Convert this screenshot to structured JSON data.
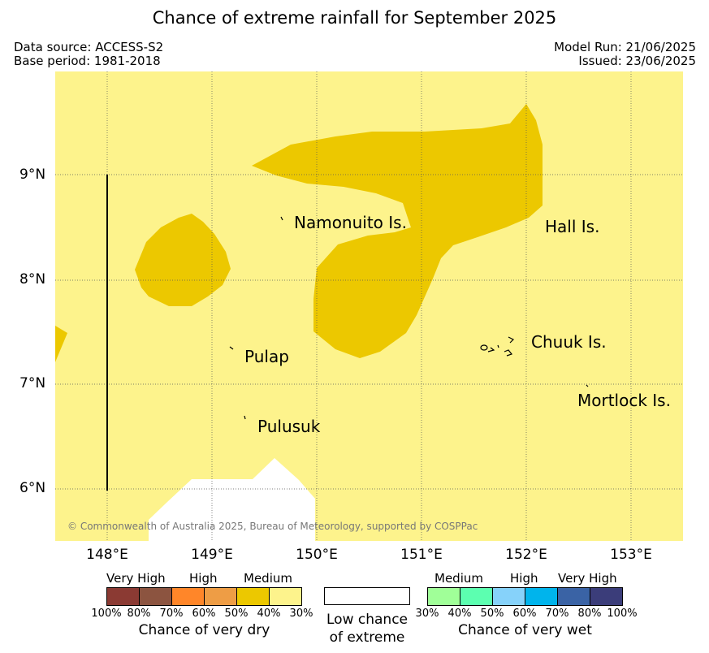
{
  "title": "Chance of extreme rainfall for September 2025",
  "meta": {
    "data_source": "Data source: ACCESS-S2",
    "base_period": "Base period: 1981-2018",
    "model_run": "Model Run: 21/06/2025",
    "issued": "Issued: 23/06/2025"
  },
  "map": {
    "copyright": "© Commonwealth of Australia 2025, Bureau of Meteorology, supported by COSPPac",
    "background_color": "#fdf38c",
    "high_dry_color": "#ecc800",
    "no_data_color": "#ffffff",
    "lat_labels": [
      "9°N",
      "8°N",
      "7°N",
      "6°N"
    ],
    "lon_labels": [
      "148°E",
      "149°E",
      "150°E",
      "151°E",
      "152°E",
      "153°E"
    ],
    "places": [
      "Namonuito Is.",
      "Hall Is.",
      "Pulap",
      "Chuuk Is.",
      "Mortlock Is.",
      "Pulusuk"
    ]
  },
  "legend": {
    "dry": {
      "labels": [
        "Very High",
        "High",
        "Medium"
      ],
      "percentages": [
        "100%",
        "80%",
        "70%",
        "60%",
        "50%",
        "40%",
        "30%"
      ],
      "colors": [
        "#8b3a33",
        "#8c5440",
        "#ff8629",
        "#ee9d45",
        "#ecc800",
        "#fdf38c"
      ],
      "caption": "Chance of very dry"
    },
    "low": {
      "caption_line1": "Low chance",
      "caption_line2": "of extreme",
      "color": "#ffffff"
    },
    "wet": {
      "labels": [
        "Medium",
        "High",
        "Very High"
      ],
      "percentages": [
        "30%",
        "40%",
        "50%",
        "60%",
        "70%",
        "80%",
        "100%"
      ],
      "colors": [
        "#a0ff98",
        "#5cffb0",
        "#86d2fa",
        "#00b4ec",
        "#3a63a5",
        "#3b3d7a"
      ],
      "caption": "Chance of very wet"
    }
  }
}
